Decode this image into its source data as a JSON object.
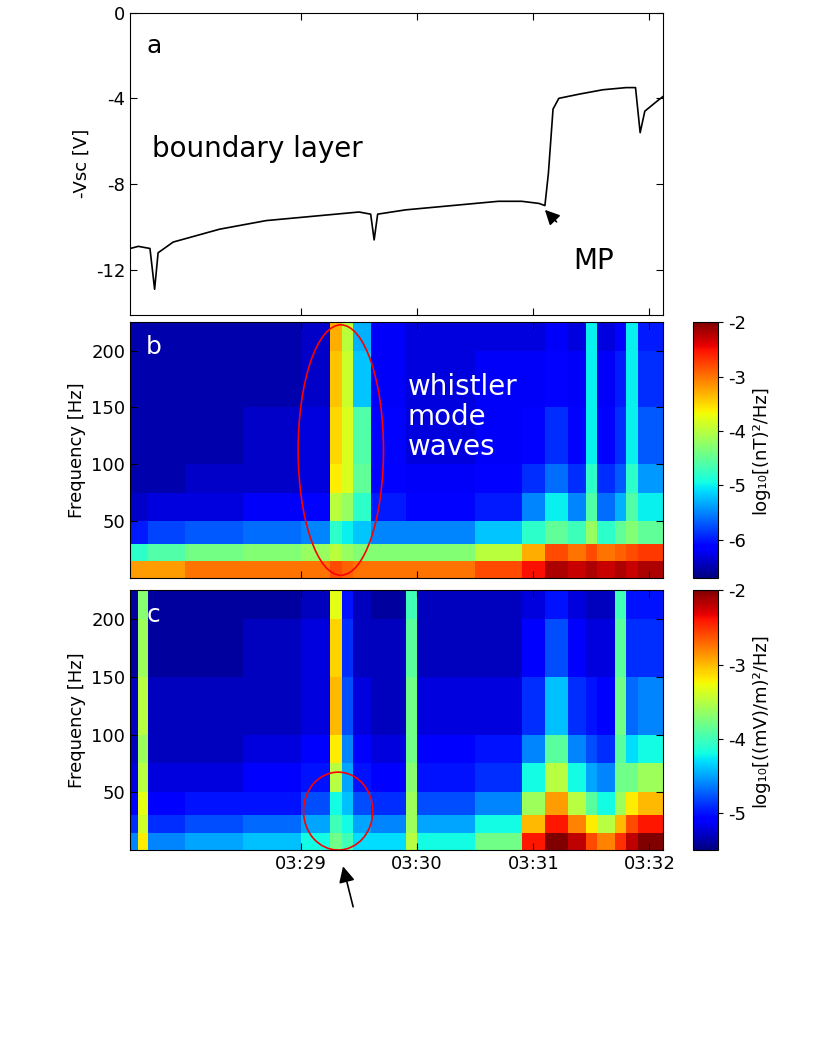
{
  "chart_data": [
    {
      "type": "line",
      "title": "a",
      "ylabel": "-Vsc [V]",
      "color": "#000000",
      "tick_labels": "y",
      "grid": false,
      "x": [
        27.53,
        27.6,
        27.7,
        27.74,
        27.77,
        27.9,
        28.1,
        28.3,
        28.5,
        28.7,
        28.9,
        29.1,
        29.3,
        29.5,
        29.6,
        29.63,
        29.66,
        29.9,
        30.1,
        30.3,
        30.5,
        30.7,
        30.9,
        31.05,
        31.1,
        31.13,
        31.17,
        31.22,
        31.4,
        31.6,
        31.8,
        31.88,
        31.92,
        31.96,
        32.05,
        32.12
      ],
      "values": [
        -11.0,
        -10.9,
        -11.0,
        -12.9,
        -11.2,
        -10.7,
        -10.4,
        -10.1,
        -9.9,
        -9.7,
        -9.6,
        -9.5,
        -9.4,
        -9.3,
        -9.4,
        -10.6,
        -9.4,
        -9.2,
        -9.1,
        -9.0,
        -8.9,
        -8.8,
        -8.8,
        -8.9,
        -9.0,
        -7.5,
        -4.5,
        -4.0,
        -3.8,
        -3.6,
        -3.5,
        -3.5,
        -5.6,
        -4.6,
        -4.2,
        -3.9
      ],
      "xlim": [
        27.53,
        32.12
      ],
      "xticks": [
        {
          "value": 29,
          "label": "03:29"
        },
        {
          "value": 30,
          "label": "03:30"
        },
        {
          "value": 31,
          "label": "03:31"
        },
        {
          "value": 32,
          "label": "03:32"
        }
      ],
      "ylim": [
        -14.1,
        0
      ],
      "yticks": [
        -12,
        -8,
        -4,
        0
      ],
      "annotations": [
        {
          "text": "boundary layer"
        },
        {
          "text": "MP",
          "x": 31.1,
          "y": -9.2
        }
      ]
    },
    {
      "type": "heatmap",
      "title": "b",
      "ylabel": "Frequency [Hz]",
      "tick_labels": "y",
      "grid": false,
      "xlim": [
        27.53,
        32.12
      ],
      "xticks": [
        {
          "value": 29,
          "label": "03:29"
        },
        {
          "value": 30,
          "label": "03:30"
        },
        {
          "value": 31,
          "label": "03:31"
        },
        {
          "value": 32,
          "label": "03:32"
        }
      ],
      "ylim": [
        0,
        225
      ],
      "yticks": [
        50,
        100,
        150,
        200
      ],
      "x_edges": [
        27.53,
        27.6,
        27.68,
        28.0,
        28.5,
        29.0,
        29.25,
        29.35,
        29.45,
        29.6,
        29.9,
        30.0,
        30.5,
        30.9,
        31.1,
        31.3,
        31.45,
        31.55,
        31.7,
        31.8,
        31.9,
        32.12
      ],
      "y_edges": [
        0,
        15,
        30,
        50,
        75,
        100,
        150,
        200,
        230
      ],
      "cells": [
        [
          -3.2,
          -3.2,
          -3.2,
          -3.0,
          -3.0,
          -3.0,
          -2.8,
          -2.9,
          -3.0,
          -3.0,
          -3.0,
          -3.0,
          -2.8,
          -2.5,
          -2.2,
          -2.3,
          -2.2,
          -2.3,
          -2.2,
          -2.3,
          -2.2
        ],
        [
          -4.8,
          -4.8,
          -4.6,
          -4.4,
          -4.3,
          -4.2,
          -4.0,
          -4.2,
          -4.3,
          -4.3,
          -4.3,
          -4.3,
          -4.0,
          -3.3,
          -2.8,
          -3.0,
          -2.8,
          -3.0,
          -2.9,
          -2.8,
          -2.7
        ],
        [
          -6.0,
          -6.0,
          -5.8,
          -5.7,
          -5.6,
          -5.5,
          -4.8,
          -5.0,
          -5.2,
          -5.5,
          -5.5,
          -5.5,
          -5.2,
          -4.8,
          -4.5,
          -4.7,
          -4.2,
          -4.8,
          -4.5,
          -4.3,
          -4.5
        ],
        [
          -6.4,
          -6.4,
          -6.3,
          -6.3,
          -6.2,
          -6.1,
          -4.0,
          -4.2,
          -4.8,
          -6.0,
          -6.1,
          -6.1,
          -6.0,
          -5.5,
          -5.0,
          -5.5,
          -4.6,
          -5.6,
          -5.3,
          -4.6,
          -5.0
        ],
        [
          -6.5,
          -6.5,
          -6.5,
          -6.4,
          -6.4,
          -6.3,
          -3.6,
          -3.8,
          -4.5,
          -6.1,
          -6.2,
          -6.2,
          -6.1,
          -5.9,
          -5.6,
          -5.9,
          -4.8,
          -5.9,
          -5.7,
          -4.8,
          -5.4
        ],
        [
          -6.5,
          -6.5,
          -6.5,
          -6.5,
          -6.4,
          -6.3,
          -3.5,
          -3.8,
          -4.6,
          -6.1,
          -6.3,
          -6.3,
          -6.2,
          -6.1,
          -5.9,
          -6.1,
          -5.0,
          -6.1,
          -5.9,
          -5.0,
          -5.7
        ],
        [
          -6.5,
          -6.5,
          -6.5,
          -6.5,
          -6.5,
          -6.4,
          -3.4,
          -3.9,
          -5.2,
          -6.2,
          -6.3,
          -6.3,
          -6.2,
          -6.2,
          -6.1,
          -6.2,
          -5.0,
          -6.2,
          -6.0,
          -5.0,
          -5.9
        ],
        [
          -6.5,
          -6.5,
          -6.5,
          -6.5,
          -6.5,
          -6.4,
          -3.3,
          -4.0,
          -5.3,
          -6.2,
          -6.3,
          -6.3,
          -6.3,
          -6.3,
          -6.2,
          -6.3,
          -5.0,
          -6.3,
          -6.1,
          -5.0,
          -6.0
        ]
      ],
      "colorbar": {
        "label": "log₁₀[(nT)²/Hz]",
        "range": [
          -6.7,
          -2
        ],
        "ticks": [
          -6,
          -5,
          -4,
          -3,
          -2
        ]
      },
      "annotations": [
        {
          "text": "whistler\nmode\nwaves"
        }
      ]
    },
    {
      "type": "heatmap",
      "title": "c",
      "ylabel": "Frequency [Hz]",
      "grid": false,
      "xlim": [
        27.53,
        32.12
      ],
      "xticks": [
        {
          "value": 29,
          "label": "03:29"
        },
        {
          "value": 30,
          "label": "03:30"
        },
        {
          "value": 31,
          "label": "03:31"
        },
        {
          "value": 32,
          "label": "03:32"
        }
      ],
      "ylim": [
        0,
        225
      ],
      "yticks": [
        50,
        100,
        150,
        200
      ],
      "x_edges": [
        27.53,
        27.6,
        27.68,
        28.0,
        28.5,
        29.0,
        29.25,
        29.35,
        29.45,
        29.6,
        29.9,
        30.0,
        30.5,
        30.9,
        31.1,
        31.3,
        31.45,
        31.55,
        31.7,
        31.8,
        31.9,
        32.12
      ],
      "y_edges": [
        0,
        15,
        30,
        50,
        75,
        100,
        150,
        200,
        230
      ],
      "cells": [
        [
          -4.6,
          -3.2,
          -4.6,
          -4.5,
          -4.4,
          -4.2,
          -3.8,
          -4.0,
          -4.3,
          -4.3,
          -3.5,
          -4.2,
          -3.8,
          -2.4,
          -2.0,
          -2.2,
          -2.6,
          -2.8,
          -2.5,
          -2.2,
          -2.0
        ],
        [
          -4.9,
          -3.4,
          -4.9,
          -4.8,
          -4.7,
          -4.5,
          -4.0,
          -4.2,
          -4.5,
          -4.6,
          -3.6,
          -4.5,
          -4.2,
          -3.0,
          -2.4,
          -2.8,
          -3.2,
          -3.5,
          -3.0,
          -2.6,
          -2.4
        ],
        [
          -5.1,
          -3.3,
          -5.1,
          -5.0,
          -5.0,
          -4.8,
          -4.2,
          -4.4,
          -4.8,
          -4.9,
          -3.6,
          -4.8,
          -4.6,
          -3.6,
          -2.9,
          -3.5,
          -3.9,
          -4.2,
          -3.6,
          -3.2,
          -3.0
        ],
        [
          -5.2,
          -3.5,
          -5.2,
          -5.2,
          -5.1,
          -5.0,
          -3.5,
          -4.5,
          -5.0,
          -5.1,
          -3.7,
          -5.0,
          -4.9,
          -4.2,
          -3.5,
          -4.2,
          -4.5,
          -4.6,
          -3.8,
          -3.8,
          -3.6
        ],
        [
          -5.3,
          -3.6,
          -5.3,
          -5.3,
          -5.2,
          -5.1,
          -3.2,
          -4.6,
          -5.1,
          -5.2,
          -3.8,
          -5.1,
          -5.0,
          -4.6,
          -3.9,
          -4.6,
          -4.8,
          -4.9,
          -3.9,
          -4.3,
          -4.2
        ],
        [
          -5.3,
          -3.5,
          -5.3,
          -5.3,
          -5.3,
          -5.2,
          -3.0,
          -4.8,
          -5.2,
          -5.3,
          -3.8,
          -5.2,
          -5.2,
          -4.9,
          -4.4,
          -4.9,
          -5.0,
          -5.1,
          -3.8,
          -4.7,
          -4.6
        ],
        [
          -5.4,
          -3.6,
          -5.4,
          -5.4,
          -5.3,
          -5.2,
          -3.1,
          -4.9,
          -5.3,
          -5.3,
          -3.9,
          -5.3,
          -5.3,
          -5.1,
          -4.8,
          -5.1,
          -5.2,
          -5.2,
          -3.9,
          -4.9,
          -4.9
        ],
        [
          -5.4,
          -3.7,
          -5.4,
          -5.4,
          -5.4,
          -5.3,
          -3.3,
          -5.0,
          -5.3,
          -5.4,
          -4.0,
          -5.3,
          -5.3,
          -5.2,
          -5.0,
          -5.2,
          -5.3,
          -5.3,
          -4.0,
          -5.0,
          -5.0
        ]
      ],
      "colorbar": {
        "label": "log₁₀[((mV)/m)²/Hz]",
        "range": [
          -5.5,
          -2
        ],
        "ticks": [
          -5,
          -4,
          -3,
          -2
        ]
      }
    }
  ]
}
